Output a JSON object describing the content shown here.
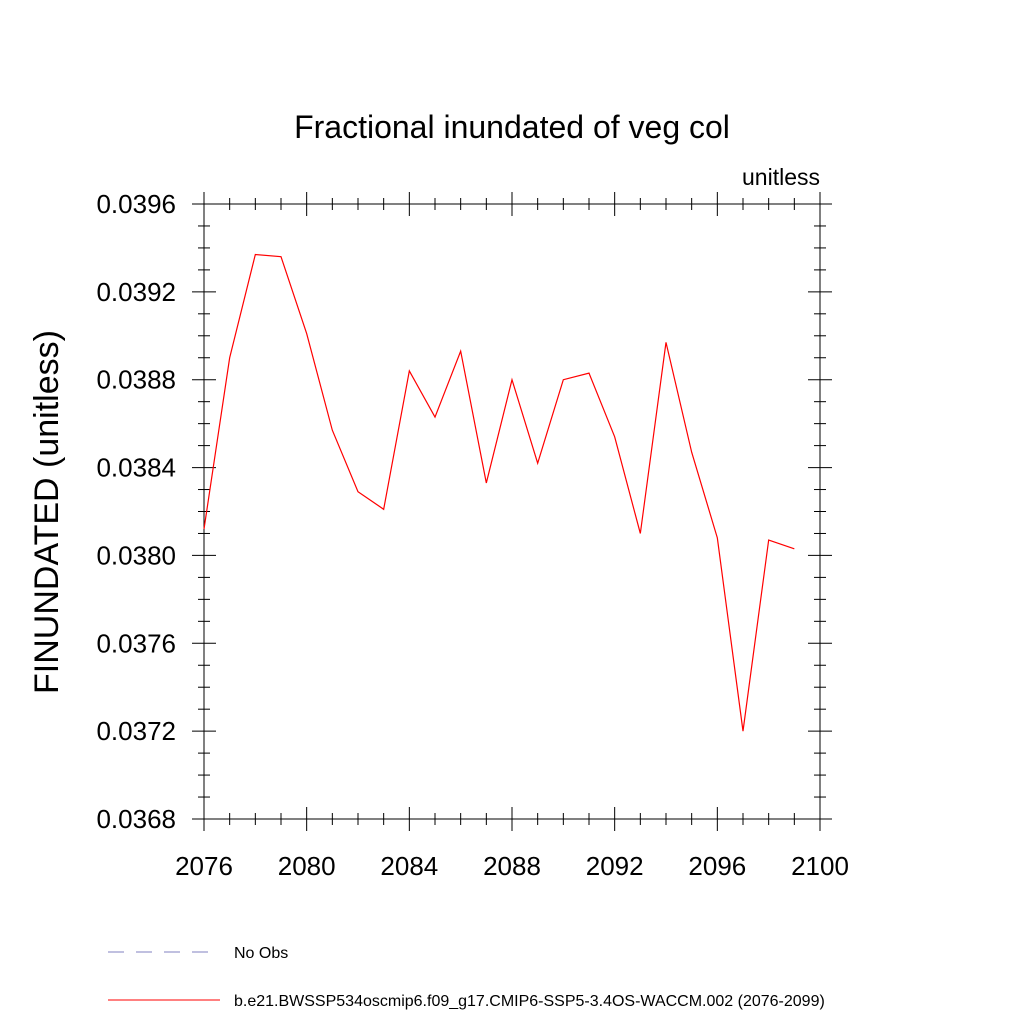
{
  "chart_data": {
    "type": "line",
    "title": "Fractional inundated of veg col",
    "units_label": "unitless",
    "ylabel": "FINUNDATED  (unitless)",
    "xlabel": "",
    "xlim": [
      2076,
      2100
    ],
    "ylim": [
      0.0368,
      0.0396
    ],
    "x_ticks": [
      2076,
      2080,
      2084,
      2088,
      2092,
      2096,
      2100
    ],
    "y_ticks": [
      0.0368,
      0.0372,
      0.0376,
      0.038,
      0.0384,
      0.0388,
      0.0392,
      0.0396
    ],
    "x_tick_labels": [
      "2076",
      "2080",
      "2084",
      "2088",
      "2092",
      "2096",
      "2100"
    ],
    "y_tick_labels": [
      "0.0368",
      "0.0372",
      "0.0376",
      "0.0380",
      "0.0384",
      "0.0388",
      "0.0392",
      "0.0396"
    ],
    "grid": false,
    "legend_placement": "bottom",
    "series": [
      {
        "name": "b.e21.BWSSP534oscmip6.f09_g17.CMIP6-SSP5-3.4OS-WACCM.002 (2076-2099)",
        "color": "#ff0000",
        "x": [
          2076,
          2077,
          2078,
          2079,
          2080,
          2081,
          2082,
          2083,
          2084,
          2085,
          2086,
          2087,
          2088,
          2089,
          2090,
          2091,
          2092,
          2093,
          2094,
          2095,
          2096,
          2097,
          2098,
          2099
        ],
        "y": [
          0.03812,
          0.0389,
          0.03937,
          0.03936,
          0.03901,
          0.03857,
          0.03829,
          0.03821,
          0.03884,
          0.03863,
          0.03893,
          0.03833,
          0.0388,
          0.03842,
          0.0388,
          0.03883,
          0.03854,
          0.0381,
          0.03897,
          0.03847,
          0.03808,
          0.0372,
          0.03807,
          0.03803
        ]
      }
    ],
    "legend": [
      {
        "label": "No Obs",
        "style": "dashed",
        "color": "#8080c0"
      },
      {
        "label": "b.e21.BWSSP534oscmip6.f09_g17.CMIP6-SSP5-3.4OS-WACCM.002 (2076-2099)",
        "style": "solid",
        "color": "#ff0000"
      }
    ]
  }
}
